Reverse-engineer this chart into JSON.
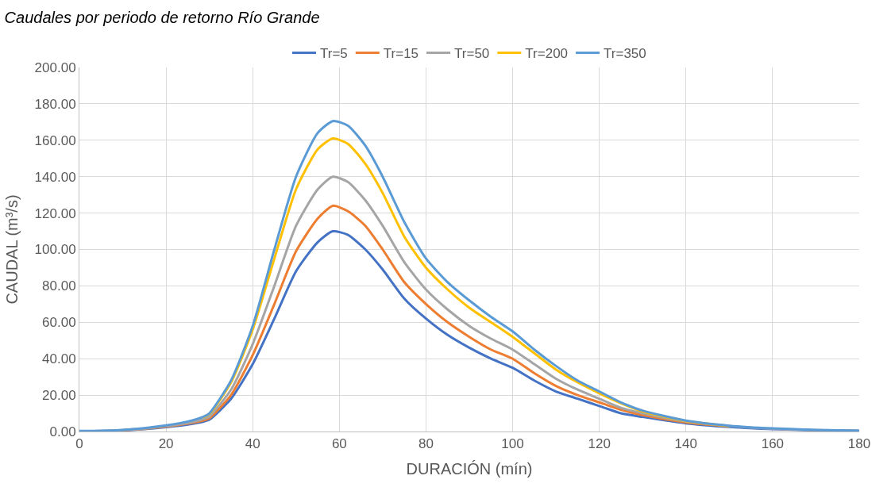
{
  "chart_data": {
    "type": "line",
    "title": "Caudales por periodo de retorno Río Grande",
    "xlabel": "DURACIÓN (mín)",
    "ylabel": "CAUDAL (m³/s)",
    "x": [
      0,
      5,
      10,
      15,
      20,
      25,
      28.5,
      30,
      35,
      40,
      45,
      50,
      55,
      58.5,
      62,
      66,
      70,
      75,
      80,
      85,
      90,
      95,
      100,
      105,
      110,
      115,
      120,
      125,
      130,
      140,
      150,
      160,
      170,
      180
    ],
    "series": [
      {
        "name": "Tr=5",
        "color": "#4472c4",
        "values": [
          0,
          0.2,
          0.6,
          1.3,
          2.4,
          3.8,
          5.3,
          6.5,
          18,
          37,
          62,
          88,
          104,
          110,
          108,
          100,
          89,
          73,
          62,
          53,
          46,
          40,
          35,
          28,
          22,
          18,
          14,
          10,
          8,
          4.5,
          2.5,
          1.3,
          0.7,
          0.3
        ]
      },
      {
        "name": "Tr=15",
        "color": "#ed7d31",
        "values": [
          null,
          null,
          0.7,
          1.5,
          2.7,
          4.3,
          6,
          7.3,
          20,
          42,
          70,
          99,
          117,
          124,
          121,
          113,
          100,
          82,
          70,
          60,
          52,
          45,
          40,
          32,
          25,
          20,
          16,
          12,
          9,
          5,
          2.8,
          null,
          null,
          null
        ]
      },
      {
        "name": "Tr=50",
        "color": "#a5a5a5",
        "values": [
          0.2,
          0.3,
          0.8,
          1.6,
          3,
          4.7,
          6.7,
          8.3,
          23,
          48,
          80,
          113,
          133,
          140,
          137,
          127,
          113,
          93,
          78,
          67,
          58,
          51,
          45,
          37,
          29,
          23,
          18,
          13,
          10,
          5.5,
          3,
          1.5,
          0.8,
          0.4
        ]
      },
      {
        "name": "Tr=200",
        "color": "#ffc000",
        "values": [
          null,
          null,
          null,
          null,
          null,
          null,
          7.7,
          9.6,
          27,
          56,
          95,
          133,
          155,
          161,
          158,
          147,
          131,
          107,
          90,
          78,
          68,
          60,
          52,
          43,
          34,
          27,
          21,
          15.5,
          11,
          5.8,
          3.1,
          null,
          null,
          null
        ]
      },
      {
        "name": "Tr=350",
        "color": "#5b9bd5",
        "values": [
          0.3,
          0.4,
          0.9,
          1.9,
          3.4,
          5.5,
          8,
          10,
          28,
          58,
          100,
          140,
          164,
          170.5,
          168,
          157,
          140,
          115,
          95,
          82,
          72,
          63,
          55,
          45,
          36,
          28,
          22,
          16,
          11.5,
          6,
          3.2,
          1.7,
          0.9,
          0.4
        ]
      }
    ],
    "xlim": [
      0,
      180
    ],
    "xticks": [
      0,
      20,
      40,
      60,
      80,
      100,
      120,
      140,
      160,
      180
    ],
    "ylim": [
      0,
      200
    ],
    "yticks": [
      {
        "value": 0,
        "label": "0.00"
      },
      {
        "value": 20,
        "label": "20.00"
      },
      {
        "value": 40,
        "label": "40.00"
      },
      {
        "value": 60,
        "label": "60.00"
      },
      {
        "value": 80,
        "label": "80.00"
      },
      {
        "value": 100,
        "label": "100.00"
      },
      {
        "value": 120,
        "label": "120.00"
      },
      {
        "value": 140,
        "label": "140.00"
      },
      {
        "value": 160,
        "label": "160.00"
      },
      {
        "value": 180,
        "label": "180.00"
      },
      {
        "value": 200,
        "label": "200.00"
      }
    ],
    "grid": true,
    "legend": "top",
    "marker": "none",
    "line_style": "solid"
  }
}
